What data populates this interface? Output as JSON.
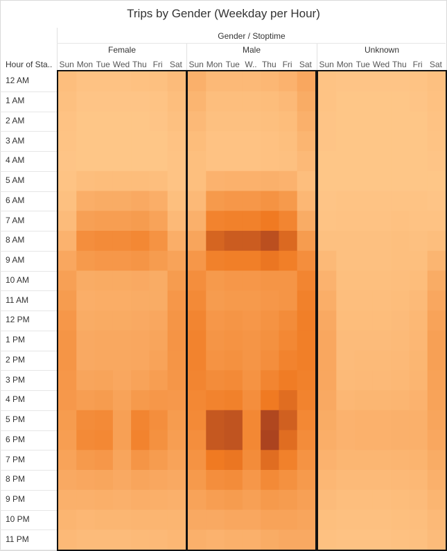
{
  "chart_data": {
    "type": "heatmap",
    "title": "Trips by Gender (Weekday per Hour)",
    "column_dimension_title": "Gender / Stoptime",
    "row_header": "Hour of Sta..",
    "groups": [
      "Female",
      "Male",
      "Unknown"
    ],
    "days": [
      "Sun",
      "Mon",
      "Tue",
      "Wed",
      "Thu",
      "Fri",
      "Sat"
    ],
    "day_labels": {
      "Female": [
        "Sun",
        "Mon",
        "Tue",
        "Wed",
        "Thu",
        "Fri",
        "Sat"
      ],
      "Male": [
        "Sun",
        "Mon",
        "Tue",
        "W..",
        "Thu",
        "Fri",
        "Sat"
      ],
      "Unknown": [
        "Sun",
        "Mon",
        "Tue",
        "Wed",
        "Thu",
        "Fri",
        "Sat"
      ]
    },
    "hours": [
      "12 AM",
      "1 AM",
      "2 AM",
      "3 AM",
      "4 AM",
      "5 AM",
      "6 AM",
      "7 AM",
      "8 AM",
      "9 AM",
      "10 AM",
      "11 AM",
      "12 PM",
      "1 PM",
      "2 PM",
      "3 PM",
      "4 PM",
      "5 PM",
      "6 PM",
      "7 PM",
      "8 PM",
      "9 PM",
      "10 PM",
      "11 PM"
    ],
    "color_scale": {
      "low": "#ffc98c",
      "mid": "#f07a22",
      "high": "#a03a1e"
    },
    "values": {
      "Female": [
        [
          0.1,
          0.06,
          0.06,
          0.06,
          0.07,
          0.08,
          0.12
        ],
        [
          0.08,
          0.04,
          0.04,
          0.04,
          0.04,
          0.05,
          0.1
        ],
        [
          0.06,
          0.03,
          0.03,
          0.03,
          0.03,
          0.04,
          0.08
        ],
        [
          0.05,
          0.03,
          0.03,
          0.03,
          0.03,
          0.03,
          0.06
        ],
        [
          0.04,
          0.03,
          0.03,
          0.03,
          0.03,
          0.03,
          0.05
        ],
        [
          0.05,
          0.1,
          0.11,
          0.11,
          0.11,
          0.1,
          0.05
        ],
        [
          0.08,
          0.24,
          0.26,
          0.26,
          0.28,
          0.24,
          0.09
        ],
        [
          0.12,
          0.36,
          0.38,
          0.38,
          0.4,
          0.34,
          0.14
        ],
        [
          0.2,
          0.52,
          0.55,
          0.55,
          0.58,
          0.48,
          0.24
        ],
        [
          0.3,
          0.42,
          0.44,
          0.44,
          0.46,
          0.4,
          0.34
        ],
        [
          0.36,
          0.26,
          0.27,
          0.27,
          0.28,
          0.26,
          0.4
        ],
        [
          0.4,
          0.24,
          0.25,
          0.25,
          0.26,
          0.26,
          0.44
        ],
        [
          0.44,
          0.26,
          0.27,
          0.27,
          0.28,
          0.3,
          0.46
        ],
        [
          0.46,
          0.28,
          0.29,
          0.29,
          0.3,
          0.32,
          0.47
        ],
        [
          0.46,
          0.28,
          0.29,
          0.29,
          0.3,
          0.34,
          0.46
        ],
        [
          0.44,
          0.32,
          0.33,
          0.3,
          0.34,
          0.38,
          0.45
        ],
        [
          0.43,
          0.38,
          0.4,
          0.34,
          0.42,
          0.44,
          0.43
        ],
        [
          0.4,
          0.54,
          0.56,
          0.36,
          0.6,
          0.52,
          0.4
        ],
        [
          0.38,
          0.56,
          0.58,
          0.36,
          0.62,
          0.5,
          0.38
        ],
        [
          0.34,
          0.42,
          0.44,
          0.32,
          0.46,
          0.4,
          0.34
        ],
        [
          0.28,
          0.3,
          0.31,
          0.28,
          0.32,
          0.3,
          0.28
        ],
        [
          0.22,
          0.22,
          0.23,
          0.22,
          0.24,
          0.23,
          0.22
        ],
        [
          0.18,
          0.16,
          0.17,
          0.17,
          0.18,
          0.18,
          0.18
        ],
        [
          0.14,
          0.12,
          0.12,
          0.12,
          0.13,
          0.14,
          0.16
        ]
      ],
      "Male": [
        [
          0.22,
          0.14,
          0.14,
          0.14,
          0.16,
          0.2,
          0.3
        ],
        [
          0.18,
          0.1,
          0.1,
          0.1,
          0.11,
          0.14,
          0.26
        ],
        [
          0.14,
          0.08,
          0.08,
          0.08,
          0.09,
          0.11,
          0.22
        ],
        [
          0.11,
          0.06,
          0.06,
          0.06,
          0.07,
          0.09,
          0.18
        ],
        [
          0.09,
          0.06,
          0.06,
          0.06,
          0.07,
          0.08,
          0.14
        ],
        [
          0.09,
          0.2,
          0.21,
          0.21,
          0.22,
          0.2,
          0.1
        ],
        [
          0.14,
          0.42,
          0.44,
          0.44,
          0.48,
          0.42,
          0.16
        ],
        [
          0.22,
          0.62,
          0.64,
          0.64,
          0.7,
          0.6,
          0.26
        ],
        [
          0.32,
          0.8,
          0.84,
          0.84,
          0.9,
          0.78,
          0.4
        ],
        [
          0.44,
          0.64,
          0.66,
          0.66,
          0.72,
          0.66,
          0.52
        ],
        [
          0.52,
          0.42,
          0.44,
          0.44,
          0.46,
          0.46,
          0.6
        ],
        [
          0.56,
          0.4,
          0.42,
          0.42,
          0.44,
          0.46,
          0.64
        ],
        [
          0.6,
          0.44,
          0.46,
          0.44,
          0.48,
          0.54,
          0.66
        ],
        [
          0.62,
          0.46,
          0.48,
          0.46,
          0.5,
          0.58,
          0.66
        ],
        [
          0.62,
          0.48,
          0.5,
          0.46,
          0.52,
          0.62,
          0.66
        ],
        [
          0.6,
          0.54,
          0.56,
          0.48,
          0.6,
          0.68,
          0.64
        ],
        [
          0.58,
          0.62,
          0.64,
          0.52,
          0.7,
          0.76,
          0.62
        ],
        [
          0.56,
          0.86,
          0.88,
          0.58,
          0.94,
          0.82,
          0.58
        ],
        [
          0.52,
          0.86,
          0.88,
          0.58,
          0.96,
          0.76,
          0.54
        ],
        [
          0.48,
          0.7,
          0.72,
          0.54,
          0.76,
          0.64,
          0.48
        ],
        [
          0.42,
          0.52,
          0.54,
          0.44,
          0.56,
          0.5,
          0.42
        ],
        [
          0.34,
          0.38,
          0.4,
          0.36,
          0.42,
          0.4,
          0.36
        ],
        [
          0.28,
          0.28,
          0.3,
          0.3,
          0.34,
          0.34,
          0.32
        ],
        [
          0.22,
          0.2,
          0.22,
          0.22,
          0.26,
          0.28,
          0.28
        ]
      ],
      "Unknown": [
        [
          0.05,
          0.04,
          0.04,
          0.04,
          0.04,
          0.05,
          0.08
        ],
        [
          0.05,
          0.03,
          0.03,
          0.03,
          0.03,
          0.04,
          0.07
        ],
        [
          0.04,
          0.03,
          0.03,
          0.03,
          0.03,
          0.03,
          0.06
        ],
        [
          0.04,
          0.03,
          0.03,
          0.03,
          0.03,
          0.03,
          0.05
        ],
        [
          0.03,
          0.03,
          0.03,
          0.03,
          0.03,
          0.03,
          0.04
        ],
        [
          0.03,
          0.03,
          0.03,
          0.03,
          0.03,
          0.03,
          0.03
        ],
        [
          0.04,
          0.05,
          0.05,
          0.05,
          0.05,
          0.05,
          0.04
        ],
        [
          0.05,
          0.06,
          0.06,
          0.06,
          0.07,
          0.06,
          0.06
        ],
        [
          0.08,
          0.08,
          0.08,
          0.08,
          0.09,
          0.08,
          0.1
        ],
        [
          0.14,
          0.08,
          0.08,
          0.08,
          0.09,
          0.09,
          0.18
        ],
        [
          0.2,
          0.09,
          0.09,
          0.09,
          0.1,
          0.11,
          0.26
        ],
        [
          0.24,
          0.1,
          0.1,
          0.1,
          0.11,
          0.13,
          0.3
        ],
        [
          0.28,
          0.11,
          0.11,
          0.11,
          0.12,
          0.15,
          0.34
        ],
        [
          0.3,
          0.12,
          0.12,
          0.12,
          0.13,
          0.16,
          0.36
        ],
        [
          0.3,
          0.12,
          0.13,
          0.13,
          0.14,
          0.17,
          0.36
        ],
        [
          0.3,
          0.13,
          0.14,
          0.14,
          0.15,
          0.18,
          0.35
        ],
        [
          0.28,
          0.16,
          0.17,
          0.17,
          0.18,
          0.2,
          0.34
        ],
        [
          0.26,
          0.2,
          0.21,
          0.21,
          0.22,
          0.22,
          0.32
        ],
        [
          0.24,
          0.2,
          0.21,
          0.21,
          0.22,
          0.22,
          0.3
        ],
        [
          0.2,
          0.17,
          0.17,
          0.17,
          0.18,
          0.19,
          0.26
        ],
        [
          0.16,
          0.13,
          0.13,
          0.13,
          0.14,
          0.15,
          0.22
        ],
        [
          0.12,
          0.1,
          0.1,
          0.1,
          0.11,
          0.12,
          0.18
        ],
        [
          0.09,
          0.08,
          0.08,
          0.08,
          0.09,
          0.1,
          0.14
        ],
        [
          0.07,
          0.06,
          0.06,
          0.06,
          0.07,
          0.08,
          0.12
        ]
      ]
    }
  }
}
